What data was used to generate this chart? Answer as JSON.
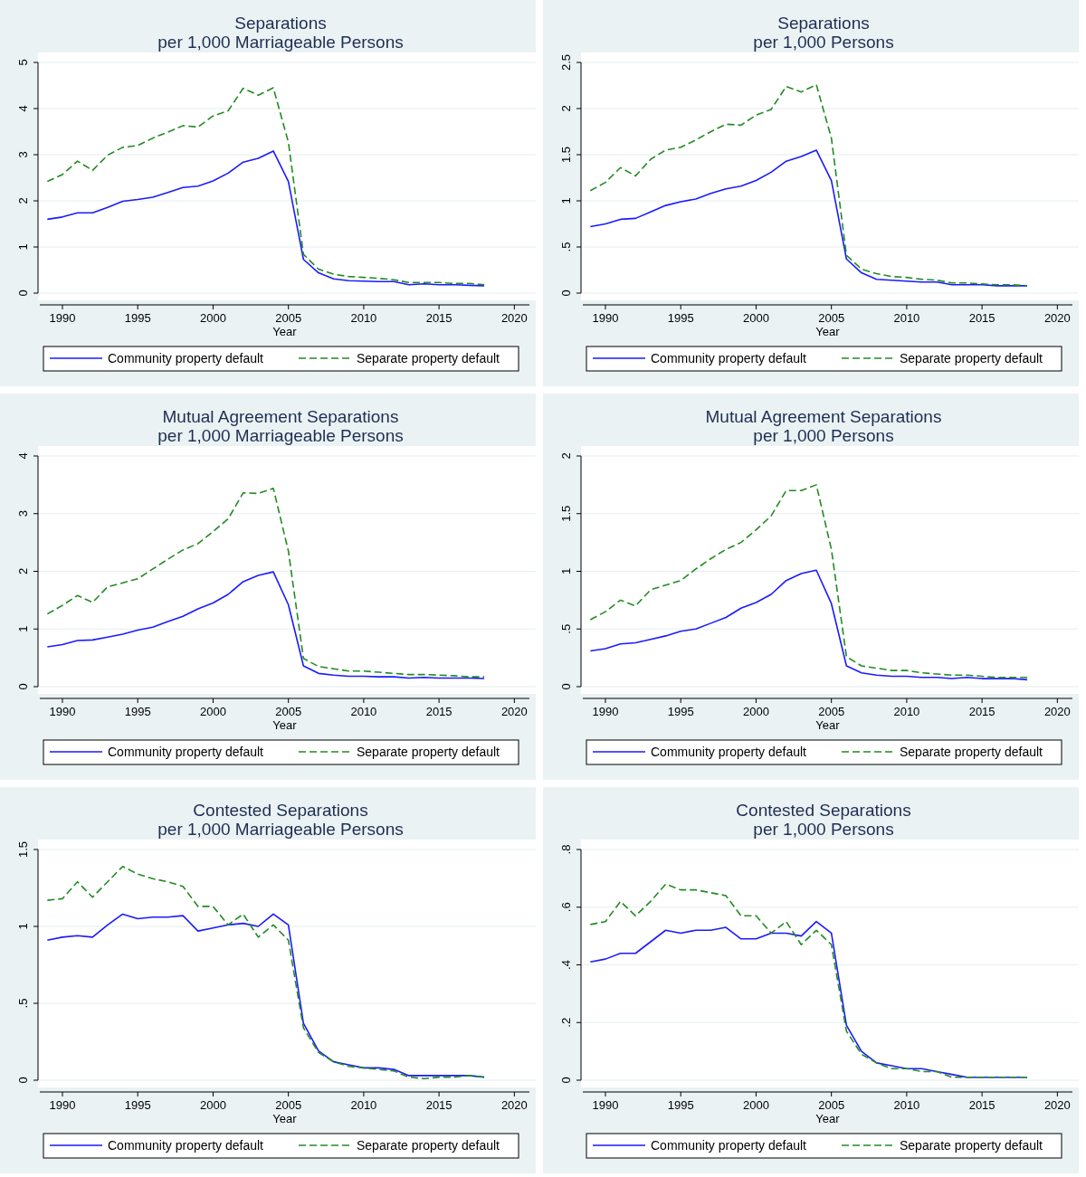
{
  "chart_data": [
    {
      "type": "line",
      "title": "Separations",
      "subtitle": "per 1,000 Marriageable Persons",
      "xlabel": "Year",
      "x": [
        1989,
        1990,
        1991,
        1992,
        1993,
        1994,
        1995,
        1996,
        1997,
        1998,
        1999,
        2000,
        2001,
        2002,
        2003,
        2004,
        2005,
        2006,
        2007,
        2008,
        2009,
        2010,
        2011,
        2012,
        2013,
        2014,
        2015,
        2016,
        2017,
        2018
      ],
      "xlim": [
        1988.5,
        2021
      ],
      "xticks": [
        1990,
        1995,
        2000,
        2005,
        2010,
        2015,
        2020
      ],
      "ylim": [
        0,
        5
      ],
      "yticks": [
        0,
        1,
        2,
        3,
        4,
        5
      ],
      "grid": "y",
      "legend": "bottom",
      "series": [
        {
          "name": "Community property default",
          "color": "#1a1aff",
          "line_style": "solid",
          "values": [
            1.6,
            1.65,
            1.74,
            1.74,
            1.86,
            1.99,
            2.03,
            2.08,
            2.18,
            2.29,
            2.32,
            2.43,
            2.6,
            2.84,
            2.92,
            3.08,
            2.42,
            0.73,
            0.44,
            0.31,
            0.27,
            0.26,
            0.25,
            0.25,
            0.18,
            0.2,
            0.18,
            0.18,
            0.17,
            0.16
          ]
        },
        {
          "name": "Separate property default",
          "color": "#228b22",
          "line_style": "dashed",
          "values": [
            2.42,
            2.57,
            2.86,
            2.66,
            2.99,
            3.16,
            3.2,
            3.36,
            3.49,
            3.63,
            3.6,
            3.84,
            3.95,
            4.44,
            4.29,
            4.45,
            3.27,
            0.84,
            0.52,
            0.41,
            0.36,
            0.34,
            0.32,
            0.29,
            0.23,
            0.23,
            0.23,
            0.21,
            0.21,
            0.18
          ]
        }
      ]
    },
    {
      "type": "line",
      "title": "Separations",
      "subtitle": "per 1,000 Persons",
      "xlabel": "Year",
      "x": [
        1989,
        1990,
        1991,
        1992,
        1993,
        1994,
        1995,
        1996,
        1997,
        1998,
        1999,
        2000,
        2001,
        2002,
        2003,
        2004,
        2005,
        2006,
        2007,
        2008,
        2009,
        2010,
        2011,
        2012,
        2013,
        2014,
        2015,
        2016,
        2017,
        2018
      ],
      "xlim": [
        1988.5,
        2021
      ],
      "xticks": [
        1990,
        1995,
        2000,
        2005,
        2010,
        2015,
        2020
      ],
      "ylim": [
        0,
        2.5
      ],
      "yticks": [
        0,
        {
          "value": 0.5,
          "label": ".5"
        },
        1,
        1.5,
        2,
        2.5
      ],
      "grid": "y",
      "legend": "bottom",
      "series": [
        {
          "name": "Community property default",
          "color": "#1a1aff",
          "line_style": "solid",
          "values": [
            0.72,
            0.75,
            0.8,
            0.81,
            0.88,
            0.95,
            0.99,
            1.02,
            1.08,
            1.13,
            1.16,
            1.22,
            1.31,
            1.43,
            1.48,
            1.55,
            1.22,
            0.37,
            0.22,
            0.15,
            0.14,
            0.13,
            0.12,
            0.12,
            0.09,
            0.09,
            0.09,
            0.08,
            0.08,
            0.08
          ]
        },
        {
          "name": "Separate property default",
          "color": "#228b22",
          "line_style": "dashed",
          "values": [
            1.11,
            1.2,
            1.36,
            1.27,
            1.45,
            1.55,
            1.58,
            1.66,
            1.75,
            1.83,
            1.82,
            1.93,
            1.99,
            2.24,
            2.18,
            2.26,
            1.68,
            0.41,
            0.26,
            0.21,
            0.18,
            0.17,
            0.15,
            0.14,
            0.11,
            0.11,
            0.1,
            0.09,
            0.09,
            0.08
          ]
        }
      ]
    },
    {
      "type": "line",
      "title": "Mutual Agreement Separations",
      "subtitle": "per 1,000 Marriageable Persons",
      "xlabel": "Year",
      "x": [
        1989,
        1990,
        1991,
        1992,
        1993,
        1994,
        1995,
        1996,
        1997,
        1998,
        1999,
        2000,
        2001,
        2002,
        2003,
        2004,
        2005,
        2006,
        2007,
        2008,
        2009,
        2010,
        2011,
        2012,
        2013,
        2014,
        2015,
        2016,
        2017,
        2018
      ],
      "xlim": [
        1988.5,
        2021
      ],
      "xticks": [
        1990,
        1995,
        2000,
        2005,
        2010,
        2015,
        2020
      ],
      "ylim": [
        0,
        4
      ],
      "yticks": [
        0,
        1,
        2,
        3,
        4
      ],
      "grid": "y",
      "legend": "bottom",
      "series": [
        {
          "name": "Community property default",
          "color": "#1a1aff",
          "line_style": "solid",
          "values": [
            0.69,
            0.73,
            0.8,
            0.81,
            0.86,
            0.91,
            0.98,
            1.03,
            1.13,
            1.22,
            1.35,
            1.45,
            1.6,
            1.82,
            1.93,
            1.99,
            1.42,
            0.36,
            0.23,
            0.2,
            0.18,
            0.18,
            0.17,
            0.17,
            0.15,
            0.16,
            0.15,
            0.15,
            0.15,
            0.14
          ]
        },
        {
          "name": "Separate property default",
          "color": "#228b22",
          "line_style": "dashed",
          "values": [
            1.26,
            1.41,
            1.58,
            1.46,
            1.73,
            1.8,
            1.87,
            2.04,
            2.21,
            2.37,
            2.48,
            2.69,
            2.91,
            3.36,
            3.35,
            3.44,
            2.35,
            0.49,
            0.35,
            0.31,
            0.27,
            0.27,
            0.25,
            0.23,
            0.21,
            0.21,
            0.2,
            0.19,
            0.17,
            0.17
          ]
        }
      ]
    },
    {
      "type": "line",
      "title": "Mutual Agreement Separations",
      "subtitle": "per 1,000 Persons",
      "xlabel": "Year",
      "x": [
        1989,
        1990,
        1991,
        1992,
        1993,
        1994,
        1995,
        1996,
        1997,
        1998,
        1999,
        2000,
        2001,
        2002,
        2003,
        2004,
        2005,
        2006,
        2007,
        2008,
        2009,
        2010,
        2011,
        2012,
        2013,
        2014,
        2015,
        2016,
        2017,
        2018
      ],
      "xlim": [
        1988.5,
        2021
      ],
      "xticks": [
        1990,
        1995,
        2000,
        2005,
        2010,
        2015,
        2020
      ],
      "ylim": [
        0,
        2
      ],
      "yticks": [
        0,
        {
          "value": 0.5,
          "label": ".5"
        },
        1,
        1.5,
        2
      ],
      "grid": "y",
      "legend": "bottom",
      "series": [
        {
          "name": "Community property default",
          "color": "#1a1aff",
          "line_style": "solid",
          "values": [
            0.31,
            0.33,
            0.37,
            0.38,
            0.41,
            0.44,
            0.48,
            0.5,
            0.55,
            0.6,
            0.68,
            0.73,
            0.8,
            0.92,
            0.98,
            1.01,
            0.72,
            0.18,
            0.12,
            0.1,
            0.09,
            0.09,
            0.08,
            0.08,
            0.07,
            0.08,
            0.07,
            0.07,
            0.07,
            0.06
          ]
        },
        {
          "name": "Separate property default",
          "color": "#228b22",
          "line_style": "dashed",
          "values": [
            0.58,
            0.65,
            0.75,
            0.7,
            0.84,
            0.88,
            0.92,
            1.02,
            1.11,
            1.19,
            1.25,
            1.36,
            1.48,
            1.7,
            1.7,
            1.75,
            1.19,
            0.26,
            0.18,
            0.16,
            0.14,
            0.14,
            0.12,
            0.11,
            0.1,
            0.1,
            0.09,
            0.08,
            0.08,
            0.08
          ]
        }
      ]
    },
    {
      "type": "line",
      "title": "Contested Separations",
      "subtitle": "per 1,000 Marriageable Persons",
      "xlabel": "Year",
      "x": [
        1989,
        1990,
        1991,
        1992,
        1993,
        1994,
        1995,
        1996,
        1997,
        1998,
        1999,
        2000,
        2001,
        2002,
        2003,
        2004,
        2005,
        2006,
        2007,
        2008,
        2009,
        2010,
        2011,
        2012,
        2013,
        2014,
        2015,
        2016,
        2017,
        2018
      ],
      "xlim": [
        1988.5,
        2021
      ],
      "xticks": [
        1990,
        1995,
        2000,
        2005,
        2010,
        2015,
        2020
      ],
      "ylim": [
        0,
        1.5
      ],
      "yticks": [
        0,
        {
          "value": 0.5,
          "label": ".5"
        },
        1,
        1.5
      ],
      "grid": "y",
      "legend": "bottom",
      "series": [
        {
          "name": "Community property default",
          "color": "#1a1aff",
          "line_style": "solid",
          "values": [
            0.91,
            0.93,
            0.94,
            0.93,
            1.01,
            1.08,
            1.05,
            1.06,
            1.06,
            1.07,
            0.97,
            0.99,
            1.01,
            1.02,
            1.0,
            1.08,
            1.01,
            0.37,
            0.19,
            0.12,
            0.1,
            0.08,
            0.08,
            0.07,
            0.03,
            0.03,
            0.03,
            0.03,
            0.03,
            0.02
          ]
        },
        {
          "name": "Separate property default",
          "color": "#228b22",
          "line_style": "dashed",
          "values": [
            1.17,
            1.18,
            1.29,
            1.19,
            1.29,
            1.39,
            1.34,
            1.31,
            1.29,
            1.26,
            1.13,
            1.13,
            1.01,
            1.08,
            0.93,
            1.01,
            0.91,
            0.34,
            0.18,
            0.12,
            0.09,
            0.08,
            0.07,
            0.06,
            0.02,
            0.01,
            0.02,
            0.02,
            0.03,
            0.02
          ]
        }
      ]
    },
    {
      "type": "line",
      "title": "Contested Separations",
      "subtitle": "per 1,000 Persons",
      "xlabel": "Year",
      "x": [
        1989,
        1990,
        1991,
        1992,
        1993,
        1994,
        1995,
        1996,
        1997,
        1998,
        1999,
        2000,
        2001,
        2002,
        2003,
        2004,
        2005,
        2006,
        2007,
        2008,
        2009,
        2010,
        2011,
        2012,
        2013,
        2014,
        2015,
        2016,
        2017,
        2018
      ],
      "xlim": [
        1988.5,
        2021
      ],
      "xticks": [
        1990,
        1995,
        2000,
        2005,
        2010,
        2015,
        2020
      ],
      "ylim": [
        0,
        0.8
      ],
      "yticks": [
        0,
        {
          "value": 0.2,
          "label": ".2"
        },
        {
          "value": 0.4,
          "label": ".4"
        },
        {
          "value": 0.6,
          "label": ".6"
        },
        {
          "value": 0.8,
          "label": ".8"
        }
      ],
      "grid": "y",
      "legend": "bottom",
      "series": [
        {
          "name": "Community property default",
          "color": "#1a1aff",
          "line_style": "solid",
          "values": [
            0.41,
            0.42,
            0.44,
            0.44,
            0.48,
            0.52,
            0.51,
            0.52,
            0.52,
            0.53,
            0.49,
            0.49,
            0.51,
            0.51,
            0.5,
            0.55,
            0.51,
            0.19,
            0.1,
            0.06,
            0.05,
            0.04,
            0.04,
            0.03,
            0.02,
            0.01,
            0.01,
            0.01,
            0.01,
            0.01
          ]
        },
        {
          "name": "Separate property default",
          "color": "#228b22",
          "line_style": "dashed",
          "values": [
            0.54,
            0.55,
            0.62,
            0.57,
            0.62,
            0.68,
            0.66,
            0.66,
            0.65,
            0.64,
            0.57,
            0.57,
            0.51,
            0.55,
            0.47,
            0.52,
            0.47,
            0.17,
            0.09,
            0.06,
            0.04,
            0.04,
            0.03,
            0.03,
            0.01,
            0.01,
            0.01,
            0.01,
            0.01,
            0.01
          ]
        }
      ]
    }
  ]
}
